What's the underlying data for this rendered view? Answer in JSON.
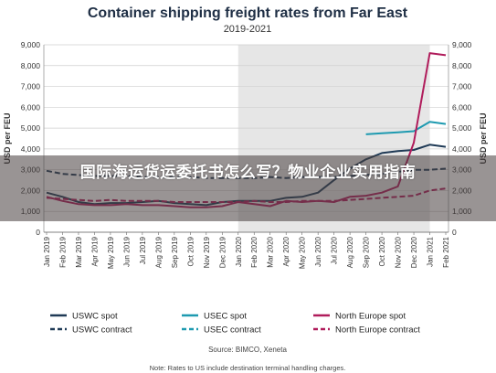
{
  "overlay": {
    "banner_text": "国际海运货运委托书怎么写？物业企业实用指南"
  },
  "chart_data": {
    "type": "line",
    "title": "Container shipping freight rates from Far East",
    "subtitle": "2019-2021",
    "ylabel": "USD per FEU",
    "ylim": [
      0,
      9000
    ],
    "yticks": [
      "0",
      "1,000",
      "2,000",
      "3,000",
      "4,000",
      "5,000",
      "6,000",
      "7,000",
      "8,000",
      "9,000"
    ],
    "months": [
      "Jan 2019",
      "Feb 2019",
      "Mar 2019",
      "Apr 2019",
      "May 2019",
      "Jun 2019",
      "Jul 2019",
      "Aug 2019",
      "Sep 2019",
      "Oct 2019",
      "Nov 2019",
      "Dec 2019",
      "Jan 2020",
      "Feb 2020",
      "Mar 2020",
      "Apr 2020",
      "May 2020",
      "Jun 2020",
      "Jul 2020",
      "Aug 2020",
      "Sep 2020",
      "Oct 2020",
      "Nov 2020",
      "Dec 2020",
      "Jan 2021",
      "Feb 2021"
    ],
    "shaded_range": [
      "Jan 2020",
      "Jan 2021"
    ],
    "series": [
      {
        "name": "USWC spot",
        "color": "#1f3a56",
        "dash": false,
        "values": [
          1900,
          1700,
          1450,
          1350,
          1400,
          1400,
          1450,
          1500,
          1400,
          1350,
          1300,
          1450,
          1500,
          1500,
          1500,
          1650,
          1700,
          1900,
          2500,
          3050,
          3500,
          3800,
          3900,
          3950,
          4200,
          4100
        ]
      },
      {
        "name": "USWC contract",
        "color": "#1f3a56",
        "dash": true,
        "values": [
          2950,
          2800,
          2750,
          2700,
          2700,
          2700,
          2650,
          2650,
          2650,
          2650,
          2600,
          2600,
          2600,
          2600,
          2650,
          2600,
          2650,
          2650,
          2650,
          2700,
          2750,
          2800,
          2900,
          3000,
          3000,
          3050
        ]
      },
      {
        "name": "USEC spot",
        "color": "#1e9ab0",
        "dash": false,
        "values": [
          null,
          null,
          null,
          null,
          null,
          null,
          null,
          null,
          null,
          null,
          null,
          null,
          null,
          null,
          null,
          null,
          null,
          null,
          null,
          null,
          4700,
          4750,
          4800,
          4850,
          5300,
          5200
        ]
      },
      {
        "name": "USEC contract",
        "color": "#1e9ab0",
        "dash": true,
        "values": [
          null,
          null,
          null,
          null,
          null,
          null,
          null,
          null,
          null,
          null,
          null,
          null,
          null,
          null,
          null,
          null,
          null,
          null,
          null,
          null,
          null,
          null,
          null,
          null,
          null,
          null
        ]
      },
      {
        "name": "North Europe spot",
        "color": "#b01c5b",
        "dash": false,
        "values": [
          1700,
          1500,
          1350,
          1300,
          1300,
          1350,
          1300,
          1300,
          1250,
          1200,
          1200,
          1250,
          1450,
          1350,
          1250,
          1500,
          1450,
          1500,
          1450,
          1700,
          1750,
          1900,
          2200,
          4300,
          8600,
          8500
        ]
      },
      {
        "name": "North Europe contract",
        "color": "#b01c5b",
        "dash": true,
        "values": [
          1650,
          1600,
          1550,
          1500,
          1550,
          1500,
          1500,
          1500,
          1450,
          1450,
          1450,
          1450,
          1450,
          1500,
          1450,
          1450,
          1500,
          1500,
          1500,
          1550,
          1600,
          1650,
          1700,
          1750,
          2000,
          2100
        ]
      }
    ],
    "legend": [
      {
        "name": "USWC spot",
        "color": "#1f3a56",
        "dash": false
      },
      {
        "name": "USEC spot",
        "color": "#1e9ab0",
        "dash": false
      },
      {
        "name": "North Europe spot",
        "color": "#b01c5b",
        "dash": false
      },
      {
        "name": "USWC contract",
        "color": "#1f3a56",
        "dash": true
      },
      {
        "name": "USEC contract",
        "color": "#1e9ab0",
        "dash": true
      },
      {
        "name": "North Europe contract",
        "color": "#b01c5b",
        "dash": true
      }
    ],
    "source": "Source: BIMCO, Xeneta",
    "note": "Note: Rates to US include destination terminal handling charges."
  }
}
